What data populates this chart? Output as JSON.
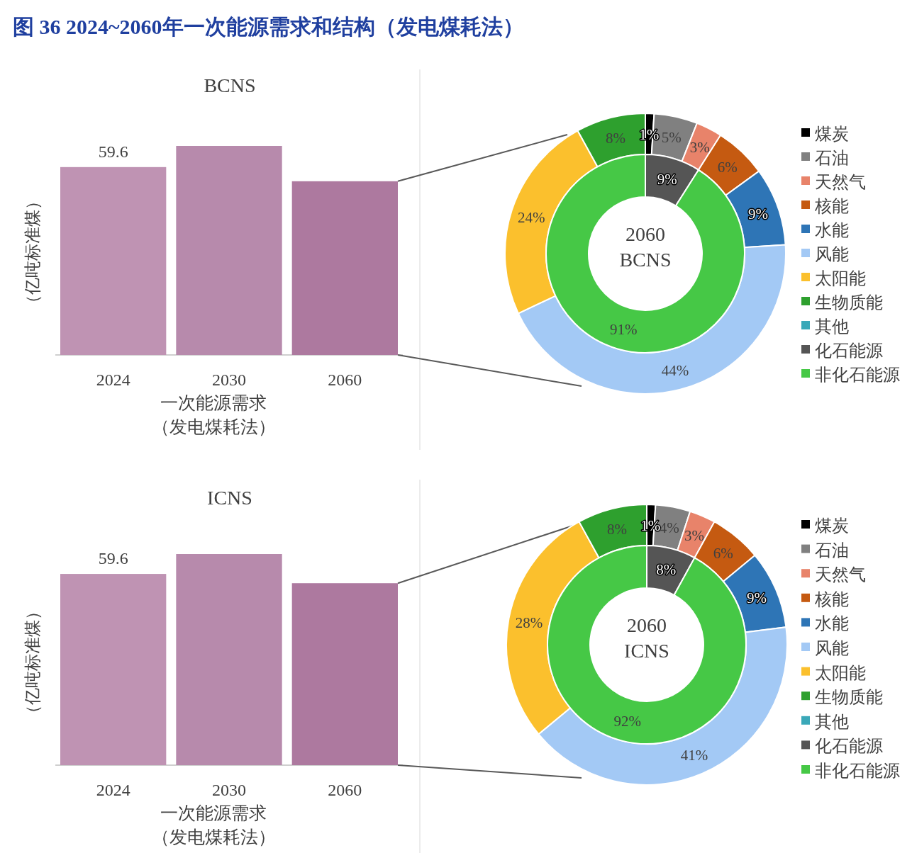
{
  "chart_data": [
    {
      "type": "bar",
      "title": "BCNS",
      "annotations": [
        "图 36  2024~2060年一次能源需求和结构（发电煤耗法）"
      ],
      "xlabel": "一次能源需求（发电煤耗法）",
      "ylabel": "（亿吨标准煤）",
      "categories": [
        "2024",
        "2030",
        "2060"
      ],
      "values": [
        59.6,
        66.3,
        55.1
      ],
      "colors": [
        "#bf93b3",
        "#b78aac",
        "#ad799f"
      ],
      "value_labels": [
        "59.6",
        null,
        null
      ]
    },
    {
      "type": "donut",
      "categories": [
        "煤炭",
        "石油",
        "天然气",
        "核能",
        "水能",
        "风能",
        "太阳能",
        "生物质能",
        "其他",
        "化石能源",
        "非化石能源"
      ],
      "colors": [
        "#000000",
        "#808080",
        "#e8836a",
        "#c55a11",
        "#2e75b6",
        "#a3c9f5",
        "#fbc02d",
        "#2ea02e",
        "#3aa8b8",
        "#555555",
        "#46c846"
      ],
      "legend": "right",
      "annotations": [
        "2060\nBCNS"
      ],
      "series": [
        {
          "values": [
            1,
            5,
            3,
            6,
            9,
            44,
            24,
            8,
            0,
            null,
            null
          ],
          "value_labels": [
            "1%",
            "5%",
            "3%",
            "6%",
            "9%",
            "44%",
            "24%",
            "8%",
            null,
            null,
            null
          ]
        },
        {
          "values": [
            null,
            null,
            null,
            null,
            null,
            null,
            null,
            null,
            null,
            9,
            91
          ],
          "value_labels": [
            null,
            null,
            null,
            null,
            null,
            null,
            null,
            null,
            null,
            "9%",
            "91%"
          ]
        }
      ]
    },
    {
      "type": "bar",
      "title": "ICNS",
      "xlabel": "一次能源需求（发电煤耗法）",
      "ylabel": "（亿吨标准煤）",
      "categories": [
        "2024",
        "2030",
        "2060"
      ],
      "values": [
        59.6,
        65.8,
        56.7
      ],
      "colors": [
        "#bf93b3",
        "#b78aac",
        "#ad799f"
      ],
      "value_labels": [
        "59.6",
        null,
        null
      ]
    },
    {
      "type": "donut",
      "categories": [
        "煤炭",
        "石油",
        "天然气",
        "核能",
        "水能",
        "风能",
        "太阳能",
        "生物质能",
        "其他",
        "化石能源",
        "非化石能源"
      ],
      "colors": [
        "#000000",
        "#808080",
        "#e8836a",
        "#c55a11",
        "#2e75b6",
        "#a3c9f5",
        "#fbc02d",
        "#2ea02e",
        "#3aa8b8",
        "#555555",
        "#46c846"
      ],
      "legend": "right",
      "annotations": [
        "2060\nICNS"
      ],
      "series": [
        {
          "values": [
            1,
            4,
            3,
            6,
            9,
            41,
            28,
            8,
            0,
            null,
            null
          ],
          "value_labels": [
            "1%",
            "4%",
            "3%",
            "6%",
            "9%",
            "41%",
            "28%",
            "8%",
            null,
            null,
            null
          ]
        },
        {
          "values": [
            null,
            null,
            null,
            null,
            null,
            null,
            null,
            null,
            null,
            8,
            92
          ],
          "value_labels": [
            null,
            null,
            null,
            null,
            null,
            null,
            null,
            null,
            null,
            "8%",
            "92%"
          ]
        }
      ]
    }
  ]
}
